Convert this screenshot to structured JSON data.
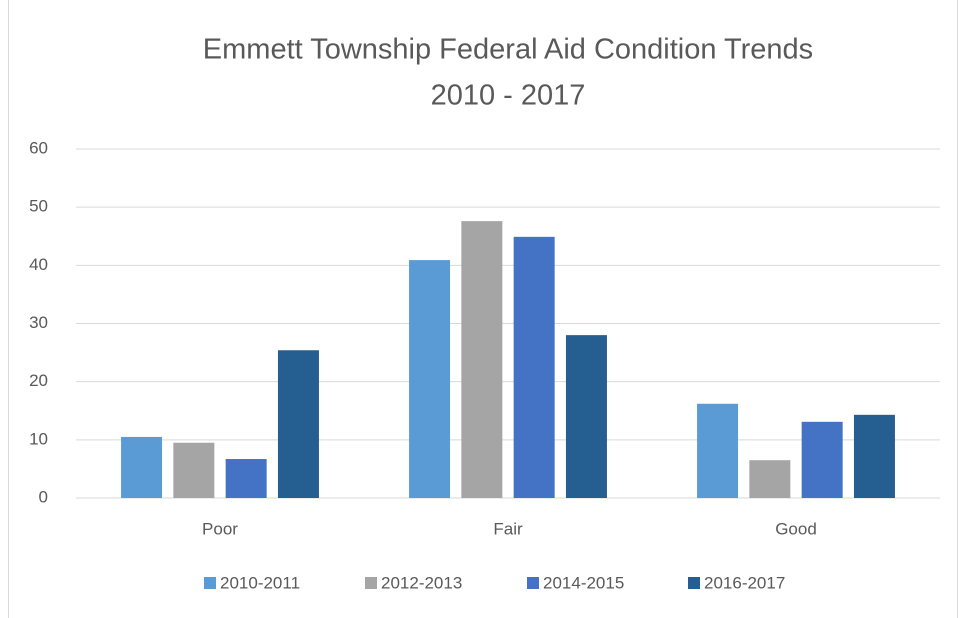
{
  "chart_data": {
    "type": "bar",
    "title": "Emmett Township Federal Aid Condition Trends",
    "subtitle": "2010 - 2017",
    "categories": [
      "Poor",
      "Fair",
      "Good"
    ],
    "series": [
      {
        "name": "2010-2011",
        "color": "#5b9bd5",
        "values": [
          10.5,
          40.9,
          16.2
        ]
      },
      {
        "name": "2012-2013",
        "color": "#a5a5a5",
        "values": [
          9.5,
          47.6,
          6.5
        ]
      },
      {
        "name": "2014-2015",
        "color": "#4472c4",
        "values": [
          6.7,
          44.9,
          13.1
        ]
      },
      {
        "name": "2016-2017",
        "color": "#255e91",
        "values": [
          25.4,
          28.0,
          14.3
        ]
      }
    ],
    "ylim": [
      0,
      60
    ],
    "yticks": [
      0,
      10,
      20,
      30,
      40,
      50,
      60
    ],
    "grid": true,
    "legend": "bottom"
  }
}
